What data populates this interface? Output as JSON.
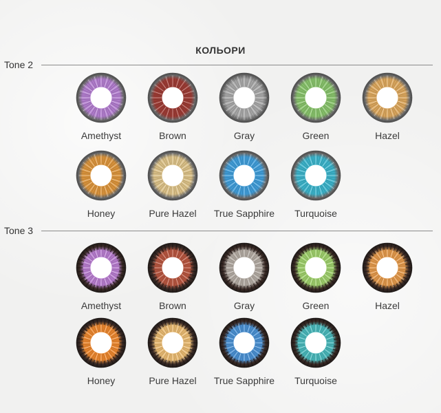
{
  "page": {
    "title": "КОЛЬОРИ"
  },
  "tones": [
    {
      "label": "Tone 2",
      "style": "light",
      "colors": [
        {
          "name": "Amethyst",
          "hex": "#b07ccc"
        },
        {
          "name": "Brown",
          "hex": "#9b3b34"
        },
        {
          "name": "Gray",
          "hex": "#a6a6a6"
        },
        {
          "name": "Green",
          "hex": "#86c06a"
        },
        {
          "name": "Hazel",
          "hex": "#d9a55c"
        },
        {
          "name": "Honey",
          "hex": "#d9933c"
        },
        {
          "name": "Pure Hazel",
          "hex": "#d9bf86"
        },
        {
          "name": "True Sapphire",
          "hex": "#3f9bd6"
        },
        {
          "name": "Turquoise",
          "hex": "#3bb1c8"
        }
      ]
    },
    {
      "label": "Tone 3",
      "style": "dark",
      "colors": [
        {
          "name": "Amethyst",
          "hex": "#b57bcc"
        },
        {
          "name": "Brown",
          "hex": "#b5553f"
        },
        {
          "name": "Gray",
          "hex": "#b0a8a0"
        },
        {
          "name": "Green",
          "hex": "#9ccc6a"
        },
        {
          "name": "Hazel",
          "hex": "#e0974a"
        },
        {
          "name": "Honey",
          "hex": "#e8852e"
        },
        {
          "name": "Pure Hazel",
          "hex": "#e6b870"
        },
        {
          "name": "True Sapphire",
          "hex": "#4a8fd0"
        },
        {
          "name": "Turquoise",
          "hex": "#48b5b8"
        }
      ]
    }
  ]
}
